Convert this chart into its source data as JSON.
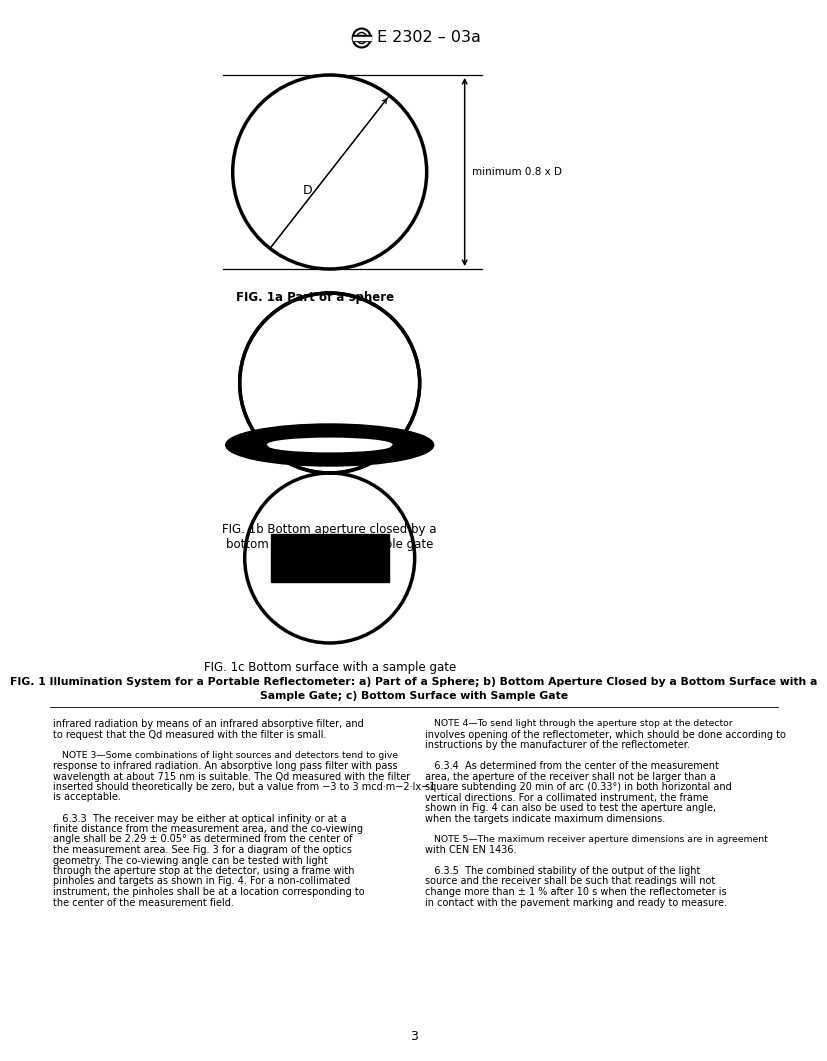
{
  "title": "E 2302 – 03a",
  "fig1a_caption": "FIG. 1a Part of a sphere",
  "fig1b_caption": "FIG. 1b Bottom aperture closed by a\nbottom surface with a sample gate",
  "fig1c_caption": "FIG. 1c Bottom surface with a sample gate",
  "main_caption_line1": "FIG. 1 Illumination System for a Portable Reflectometer: a) Part of a Sphere; b) Bottom Aperture Closed by a Bottom Surface with a",
  "main_caption_line2": "Sample Gate; c) Bottom Surface with Sample Gate",
  "dim_label": "minimum 0.8 x D",
  "d_label": "D",
  "body_text_left_lines": [
    "infrared radiation by means of an infrared absorptive filter, and",
    "to request that the Qd measured with the filter is small.",
    "",
    "   NOTE 3—Some combinations of light sources and detectors tend to give",
    "response to infrared radiation. An absorptive long pass filter with pass",
    "wavelength at about 715 nm is suitable. The Qd measured with the filter",
    "inserted should theoretically be zero, but a value from −3 to 3 mcd·m−2·lx−1",
    "is acceptable.",
    "",
    "   6.3.3  The receiver may be either at optical infinity or at a",
    "finite distance from the measurement area, and the co-viewing",
    "angle shall be 2.29 ± 0.05° as determined from the center of",
    "the measurement area. See Fig. 3 for a diagram of the optics",
    "geometry. The co-viewing angle can be tested with light",
    "through the aperture stop at the detector, using a frame with",
    "pinholes and targets as shown in Fig. 4. For a non-collimated",
    "instrument, the pinholes shall be at a location corresponding to",
    "the center of the measurement field."
  ],
  "body_text_right_lines": [
    "   NOTE 4—To send light through the aperture stop at the detector",
    "involves opening of the reflectometer, which should be done according to",
    "instructions by the manufacturer of the reflectometer.",
    "",
    "   6.3.4  As determined from the center of the measurement",
    "area, the aperture of the receiver shall not be larger than a",
    "square subtending 20 min of arc (0.33°) in both horizontal and",
    "vertical directions. For a collimated instrument, the frame",
    "shown in Fig. 4 can also be used to test the aperture angle,",
    "when the targets indicate maximum dimensions.",
    "",
    "   NOTE 5—The maximum receiver aperture dimensions are in agreement",
    "with CEN EN 1436.",
    "",
    "   6.3.5  The combined stability of the output of the light",
    "source and the receiver shall be such that readings will not",
    "change more than ± 1 % after 10 s when the reflectometer is",
    "in contact with the pavement marking and ready to measure."
  ],
  "page_number": "3",
  "background_color": "#ffffff",
  "line_color": "#000000",
  "text_color": "#000000",
  "fig3_color": "#cc2200",
  "fig4_color": "#cc2200",
  "cen_color": "#cc2200"
}
